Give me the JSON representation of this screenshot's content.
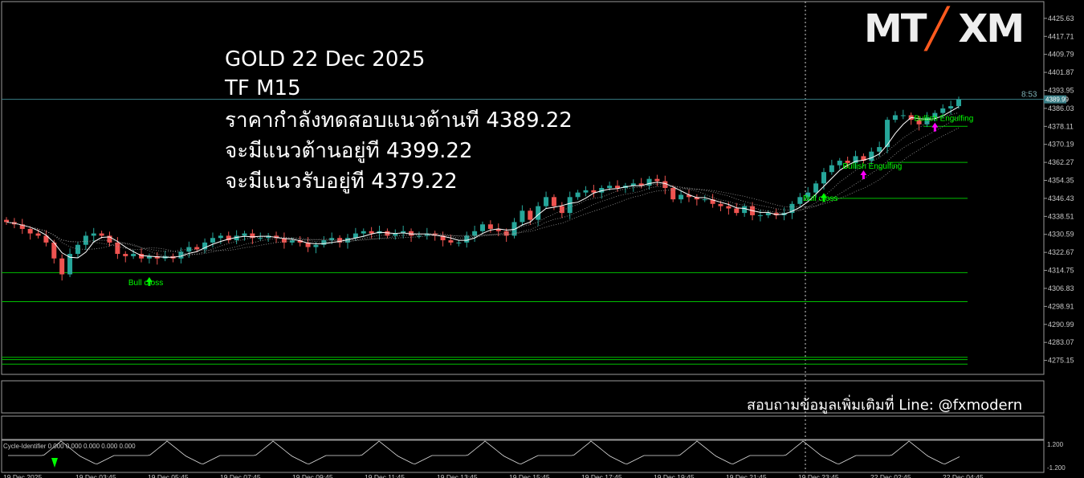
{
  "overlay": {
    "line1": "GOLD 22 Dec 2025",
    "line2": "TF M15",
    "line3": "ราคากำลังทดสอบแนวต้านที 4389.22",
    "line4": "จะมีแนวต้านอยู่ที 4399.22",
    "line5": "จะมีแนวรับอยู่ที 4379.22"
  },
  "contact": "สอบถามข้อมูลเพิ่มเติมที่ Line: @fxmodern",
  "logo": {
    "mt": "MT",
    "xm": "XM"
  },
  "timer": "8:53",
  "price_label": "4389.99",
  "indicator_label": "Cycle-Identifier 0.000 0.000 0.000 0.000 0.000",
  "indicator_axis": [
    "1.200",
    "-1.200"
  ],
  "colors": {
    "bull": "#26a69a",
    "bear": "#ef5350",
    "level": "#00c000",
    "text_green": "#00ff00",
    "magenta": "#ff00ff",
    "bg": "#000000"
  },
  "chart_data": {
    "type": "candlestick",
    "symbol": "GOLD",
    "timeframe": "M15",
    "ylim": [
      4269,
      4433
    ],
    "y_ticks": [
      "4425.63",
      "4417.71",
      "4409.79",
      "4401.87",
      "4393.95",
      "4386.03",
      "4378.11",
      "4370.19",
      "4362.27",
      "4354.35",
      "4346.43",
      "4338.51",
      "4330.59",
      "4322.67",
      "4314.75",
      "4306.83",
      "4298.91",
      "4290.99",
      "4283.07",
      "4275.15"
    ],
    "x_ticks": [
      "19 Dec 2025",
      "19 Dec 03:45",
      "19 Dec 05:45",
      "19 Dec 07:45",
      "19 Dec 09:45",
      "19 Dec 11:45",
      "19 Dec 13:45",
      "19 Dec 15:45",
      "19 Dec 17:45",
      "19 Dec 19:45",
      "19 Dec 21:45",
      "19 Dec 23:45",
      "22 Dec 02:45",
      "22 Dec 04:45"
    ],
    "closes": [
      4336,
      4335,
      4333,
      4331,
      4330,
      4327,
      4320,
      4313,
      4322,
      4326,
      4330,
      4331,
      4330,
      4327,
      4322,
      4321,
      4322,
      4320,
      4321,
      4320,
      4321,
      4320,
      4323,
      4325,
      4324,
      4327,
      4329,
      4330,
      4328,
      4330,
      4331,
      4329,
      4329,
      4330,
      4329,
      4327,
      4328,
      4327,
      4325,
      4326,
      4328,
      4329,
      4327,
      4329,
      4331,
      4332,
      4331,
      4332,
      4330,
      4331,
      4332,
      4330,
      4330,
      4331,
      4330,
      4328,
      4327,
      4327,
      4330,
      4332,
      4335,
      4333,
      4332,
      4330,
      4336,
      4341,
      4337,
      4343,
      4347,
      4343,
      4340,
      4347,
      4349,
      4350,
      4349,
      4351,
      4352,
      4351,
      4352,
      4353,
      4352,
      4355,
      4354,
      4351,
      4346,
      4348,
      4347,
      4346,
      4346,
      4344,
      4343,
      4342,
      4340,
      4343,
      4339,
      4339,
      4340,
      4339,
      4340,
      4344,
      4347,
      4349,
      4353,
      4358,
      4361,
      4363,
      4362,
      4365,
      4363,
      4367,
      4369,
      4381,
      4383,
      4383,
      4381,
      4379,
      4382,
      4384,
      4386,
      4387,
      4390
    ],
    "levels": [
      4378.11,
      4362.27,
      4346.43,
      4313.75,
      4301.0,
      4276.5,
      4275.5,
      4273.5
    ],
    "resistance_line": 4389.99,
    "annotations": [
      "Bull cross",
      "Bull cross",
      "Bullish Engulfing",
      "Bullish Engulfing"
    ]
  }
}
